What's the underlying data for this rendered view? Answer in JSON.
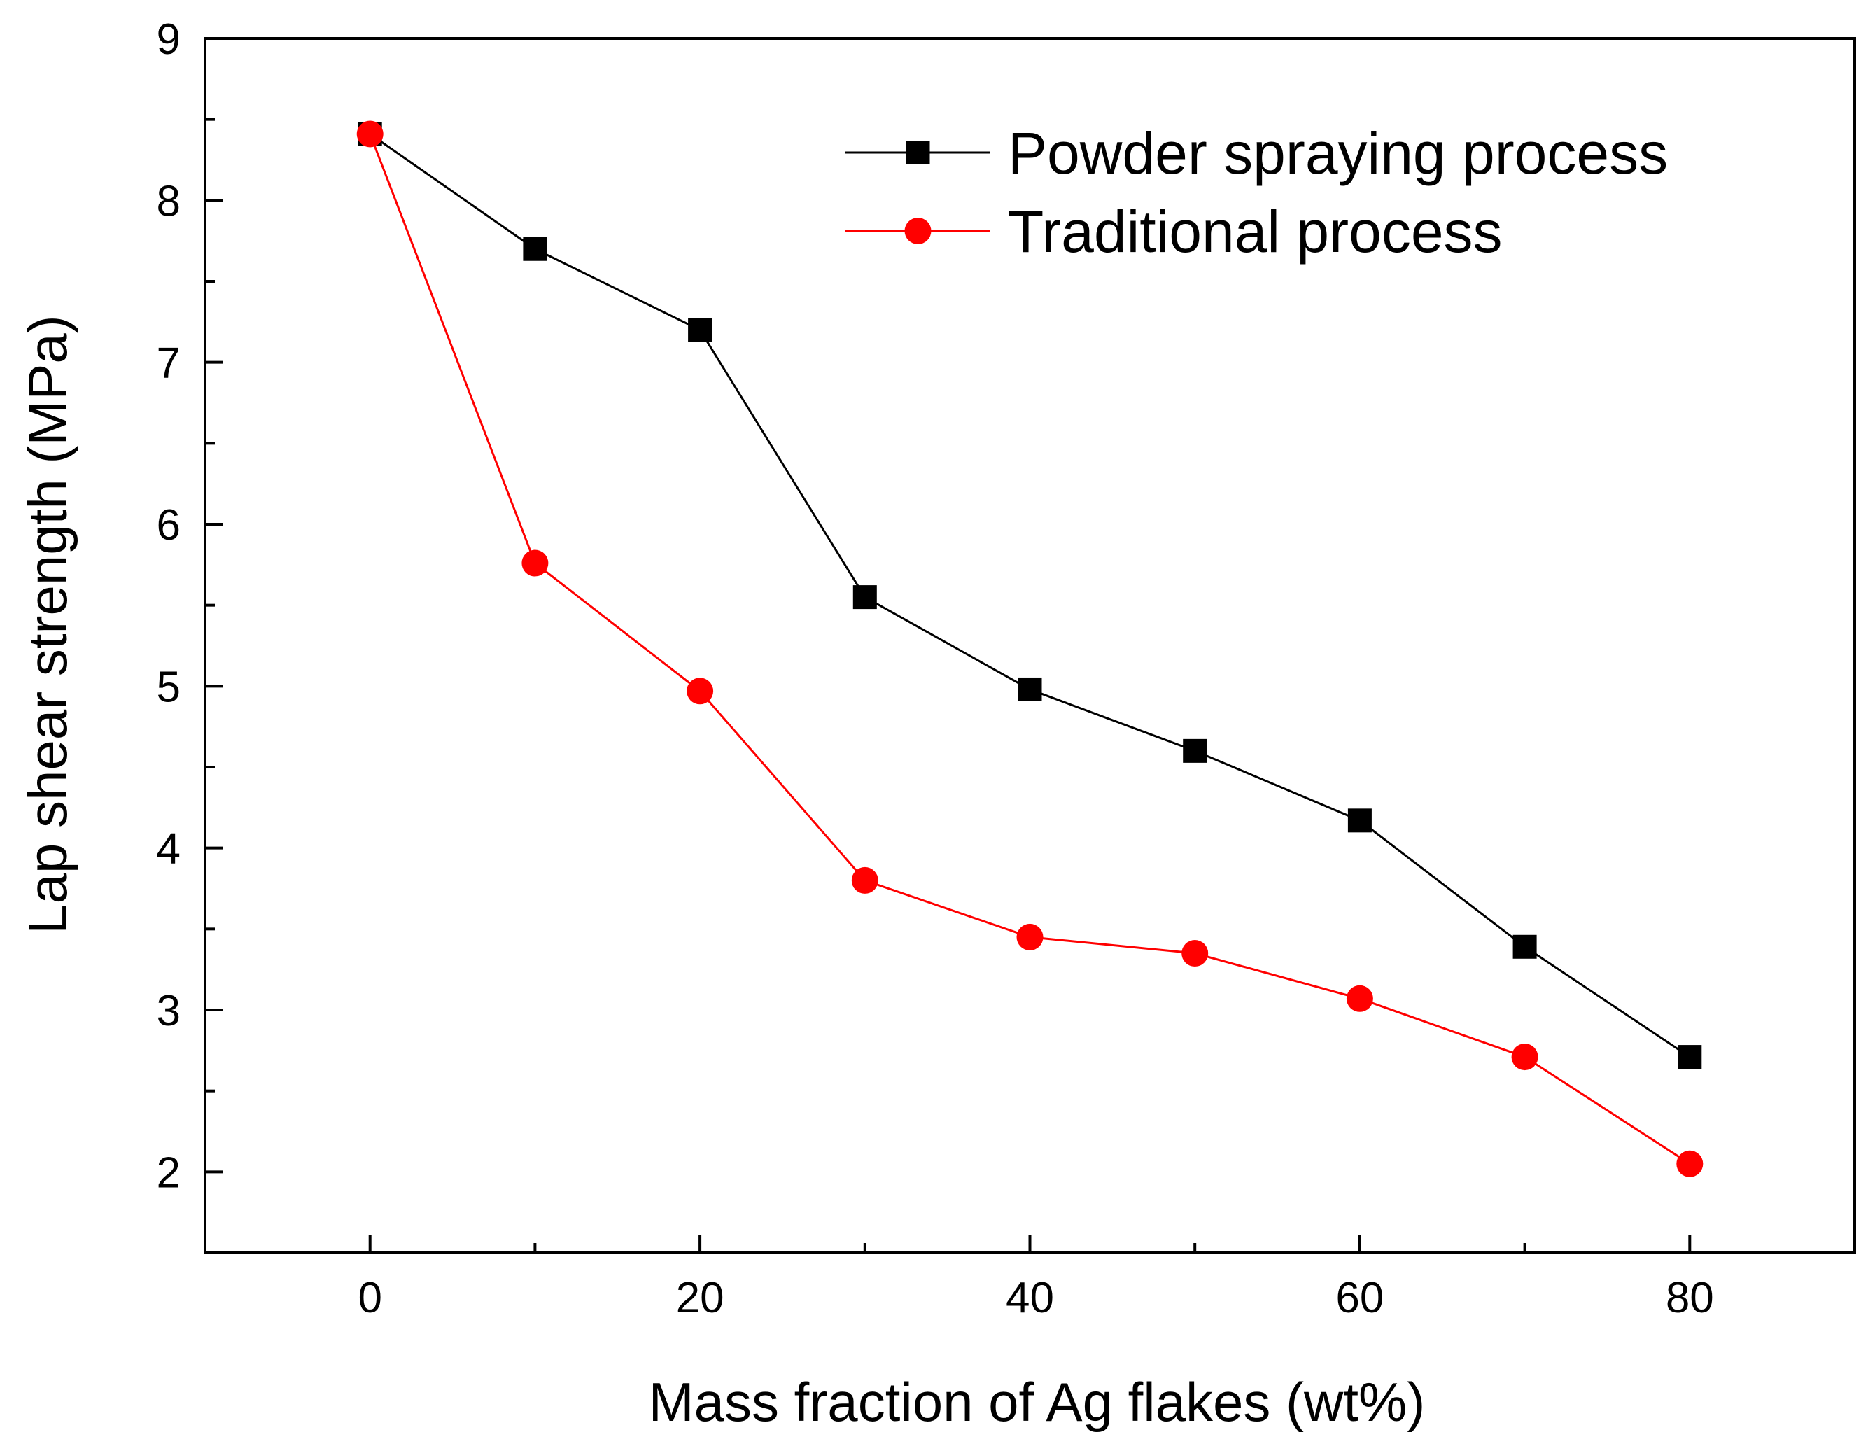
{
  "chart_data": {
    "type": "line",
    "title": "",
    "xlabel": "Mass fraction of Ag flakes (wt%)",
    "ylabel": "Lap shear strength (MPa)",
    "xlim": [
      -10,
      90
    ],
    "ylim": [
      1.5,
      9
    ],
    "xticks": [
      0,
      20,
      40,
      60,
      80
    ],
    "xtick_labels": [
      "0",
      "20",
      "40",
      "60",
      "80"
    ],
    "yticks": [
      2,
      3,
      4,
      5,
      6,
      7,
      8,
      9
    ],
    "ytick_labels": [
      "2",
      "3",
      "4",
      "5",
      "6",
      "7",
      "8",
      "9"
    ],
    "x": [
      0,
      10,
      20,
      30,
      40,
      50,
      60,
      70,
      80
    ],
    "grid": false,
    "legend_position": "top-right",
    "series": [
      {
        "name": "Powder spraying process",
        "color": "#000000",
        "marker": "square",
        "values": [
          8.41,
          7.7,
          7.2,
          5.55,
          4.98,
          4.6,
          4.17,
          3.39,
          2.71
        ]
      },
      {
        "name": "Traditional process",
        "color": "#ff0000",
        "marker": "circle",
        "values": [
          8.41,
          5.76,
          4.97,
          3.8,
          3.45,
          3.35,
          3.07,
          2.71,
          2.05
        ]
      }
    ]
  }
}
